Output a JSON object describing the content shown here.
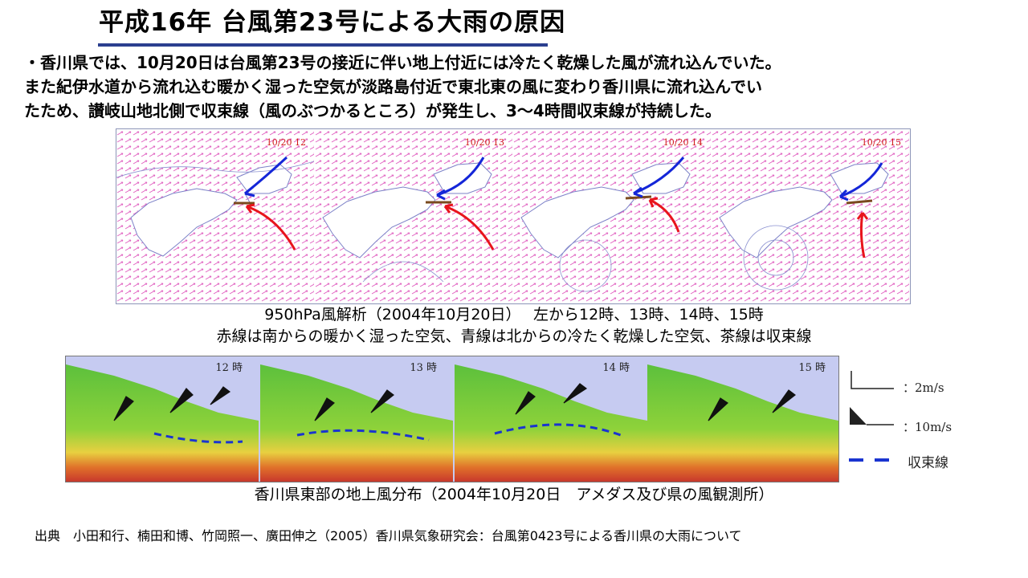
{
  "slide": {
    "title": "平成16年 台風第23号による大雨の原因",
    "intro_lines": [
      "・香川県では、10月20日は台風第23号の接近に伴い地上付近には冷たく乾燥した風が流れ込んでいた。",
      "また紀伊水道から流れ込む暖かく湿った空気が淡路島付近で東北東の風に変わり香川県に流れ込んでい",
      "たため、讃岐山地北側で収束線（風のぶつかるところ）が発生し、3～4時間収束線が持続した。"
    ]
  },
  "upper_figure": {
    "panel_times": [
      "10/20 12",
      "10/20 13",
      "10/20 14",
      "10/20 15"
    ],
    "caption_line1": "950hPa風解析（2004年10月20日）　 左から12時、13時、14時、15時",
    "caption_line2": "赤線は南からの暖かく湿った空気、青線は北からの冷たく乾燥した空気、茶線は収束線"
  },
  "lower_figure": {
    "panel_times": [
      "12 時",
      "13 時",
      "14 時",
      "15 時"
    ],
    "caption": "香川県東部の地上風分布（2004年10月20日　アメダス及び県の風観測所）"
  },
  "legend": {
    "items": [
      {
        "symbol": "barb-2ms-icon",
        "label": "：2m/s"
      },
      {
        "symbol": "flag-10ms-icon",
        "label": "：10m/s"
      },
      {
        "symbol": "dashed-convergence-line-icon",
        "label": "収束線"
      }
    ]
  },
  "source": {
    "text": "出典　小田和行、楠田和博、竹岡照一、廣田伸之（2005）香川県気象研究会：台風第0423号による香川県の大雨について"
  },
  "colors": {
    "title_rule": "#2b3f8f",
    "warm_arrow": "#e8141c",
    "cold_arrow": "#1426d8",
    "convergence_line": "#7a4a1e",
    "wind_vectors": "#e060c0",
    "dashed_line": "#1a34d0"
  }
}
